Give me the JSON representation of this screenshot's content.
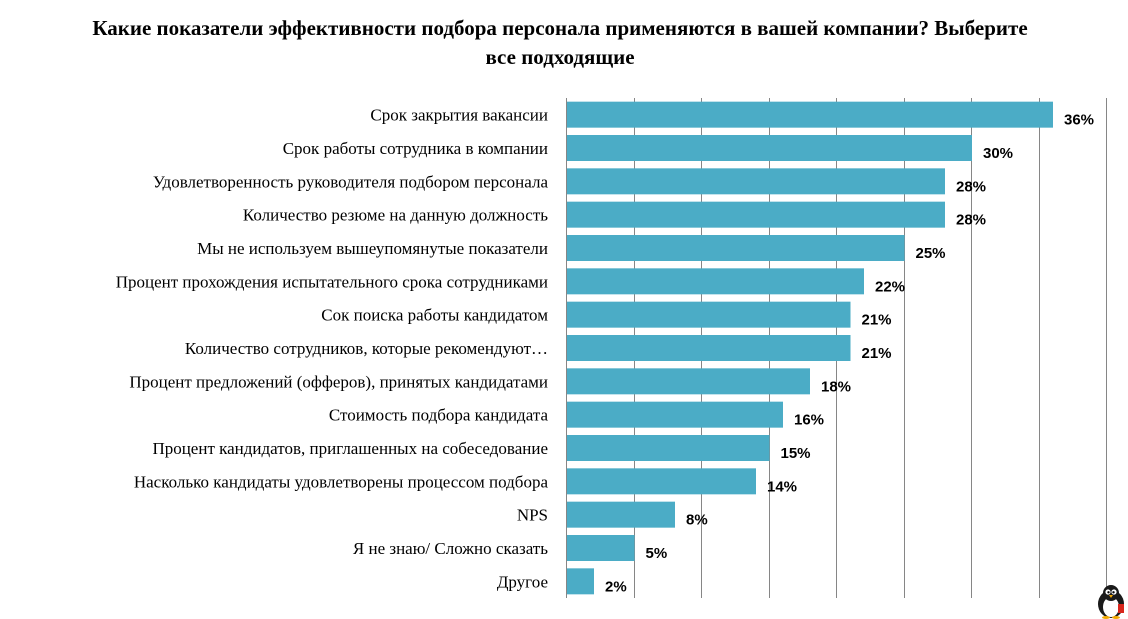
{
  "chart_data": {
    "type": "bar",
    "orientation": "horizontal",
    "title": "Какие показатели эффективности подбора персонала применяются в вашей компании? Выберите все подходящие",
    "categories": [
      "Срок закрытия вакансии",
      "Срок работы сотрудника в компании",
      "Удовлетворенность руководителя подбором персонала",
      "Количество резюме на данную должность",
      "Мы не используем вышеупомянутые показатели",
      "Процент прохождения испытательного срока сотрудниками",
      "Сок поиска работы кандидатом",
      "Количество сотрудников, которые рекомендуют…",
      "Процент предложений (офферов), принятых кандидатами",
      "Стоимость подбора кандидата",
      "Процент кандидатов, приглашенных на собеседование",
      "Насколько кандидаты удовлетворены процессом подбора",
      "NPS",
      "Я не знаю/ Сложно сказать",
      "Другое"
    ],
    "values": [
      36,
      30,
      28,
      28,
      25,
      22,
      21,
      21,
      18,
      16,
      15,
      14,
      8,
      5,
      2
    ],
    "value_labels": [
      "36%",
      "30%",
      "28%",
      "28%",
      "25%",
      "22%",
      "21%",
      "21%",
      "18%",
      "16%",
      "15%",
      "14%",
      "8%",
      "5%",
      "2%"
    ],
    "xlim": [
      0,
      40
    ],
    "grid": true,
    "bar_color": "#4bacc6",
    "legend": "none"
  }
}
